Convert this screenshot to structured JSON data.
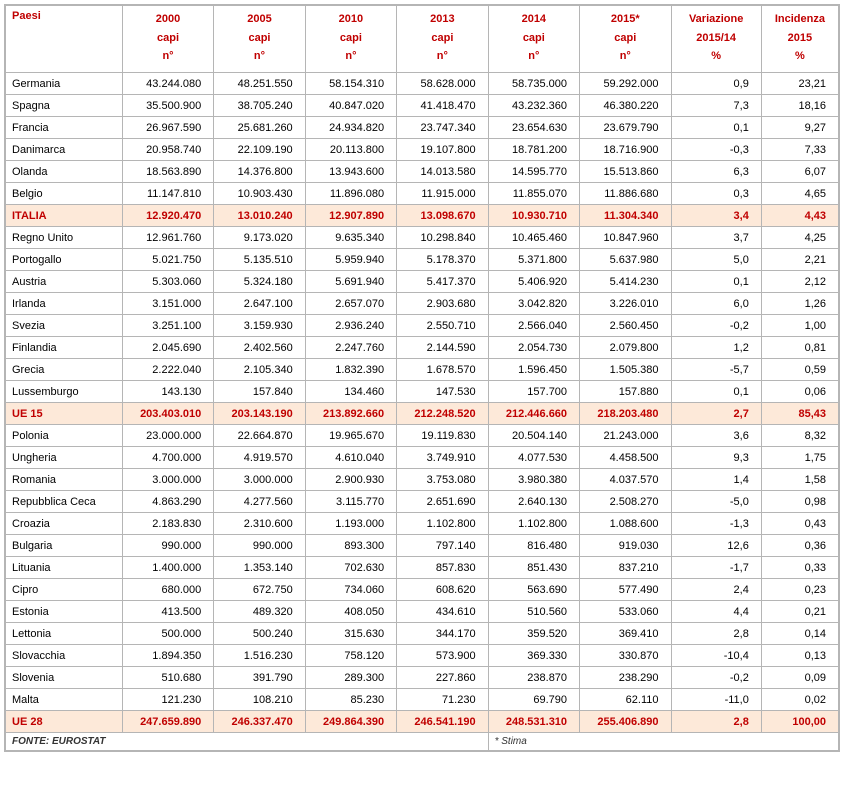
{
  "header": {
    "paesi": "Paesi",
    "cols": [
      {
        "year": "2000",
        "unit": "capi",
        "num": "n°"
      },
      {
        "year": "2005",
        "unit": "capi",
        "num": "n°"
      },
      {
        "year": "2010",
        "unit": "capi",
        "num": "n°"
      },
      {
        "year": "2013",
        "unit": "capi",
        "num": "n°"
      },
      {
        "year": "2014",
        "unit": "capi",
        "num": "n°"
      },
      {
        "year": "2015*",
        "unit": "capi",
        "num": "n°"
      }
    ],
    "variazione": {
      "l1": "Variazione",
      "l2": "2015/14",
      "l3": "%"
    },
    "incidenza": {
      "l1": "Incidenza",
      "l2": "2015",
      "l3": "%"
    }
  },
  "rows": [
    {
      "name": "Germania",
      "v": [
        "43.244.080",
        "48.251.550",
        "58.154.310",
        "58.628.000",
        "58.735.000",
        "59.292.000",
        "0,9",
        "23,21"
      ],
      "hl": false
    },
    {
      "name": "Spagna",
      "v": [
        "35.500.900",
        "38.705.240",
        "40.847.020",
        "41.418.470",
        "43.232.360",
        "46.380.220",
        "7,3",
        "18,16"
      ],
      "hl": false
    },
    {
      "name": "Francia",
      "v": [
        "26.967.590",
        "25.681.260",
        "24.934.820",
        "23.747.340",
        "23.654.630",
        "23.679.790",
        "0,1",
        "9,27"
      ],
      "hl": false
    },
    {
      "name": "Danimarca",
      "v": [
        "20.958.740",
        "22.109.190",
        "20.113.800",
        "19.107.800",
        "18.781.200",
        "18.716.900",
        "-0,3",
        "7,33"
      ],
      "hl": false
    },
    {
      "name": "Olanda",
      "v": [
        "18.563.890",
        "14.376.800",
        "13.943.600",
        "14.013.580",
        "14.595.770",
        "15.513.860",
        "6,3",
        "6,07"
      ],
      "hl": false
    },
    {
      "name": "Belgio",
      "v": [
        "11.147.810",
        "10.903.430",
        "11.896.080",
        "11.915.000",
        "11.855.070",
        "11.886.680",
        "0,3",
        "4,65"
      ],
      "hl": false
    },
    {
      "name": "ITALIA",
      "v": [
        "12.920.470",
        "13.010.240",
        "12.907.890",
        "13.098.670",
        "10.930.710",
        "11.304.340",
        "3,4",
        "4,43"
      ],
      "hl": true
    },
    {
      "name": "Regno Unito",
      "v": [
        "12.961.760",
        "9.173.020",
        "9.635.340",
        "10.298.840",
        "10.465.460",
        "10.847.960",
        "3,7",
        "4,25"
      ],
      "hl": false
    },
    {
      "name": "Portogallo",
      "v": [
        "5.021.750",
        "5.135.510",
        "5.959.940",
        "5.178.370",
        "5.371.800",
        "5.637.980",
        "5,0",
        "2,21"
      ],
      "hl": false
    },
    {
      "name": "Austria",
      "v": [
        "5.303.060",
        "5.324.180",
        "5.691.940",
        "5.417.370",
        "5.406.920",
        "5.414.230",
        "0,1",
        "2,12"
      ],
      "hl": false
    },
    {
      "name": "Irlanda",
      "v": [
        "3.151.000",
        "2.647.100",
        "2.657.070",
        "2.903.680",
        "3.042.820",
        "3.226.010",
        "6,0",
        "1,26"
      ],
      "hl": false
    },
    {
      "name": "Svezia",
      "v": [
        "3.251.100",
        "3.159.930",
        "2.936.240",
        "2.550.710",
        "2.566.040",
        "2.560.450",
        "-0,2",
        "1,00"
      ],
      "hl": false
    },
    {
      "name": "Finlandia",
      "v": [
        "2.045.690",
        "2.402.560",
        "2.247.760",
        "2.144.590",
        "2.054.730",
        "2.079.800",
        "1,2",
        "0,81"
      ],
      "hl": false
    },
    {
      "name": "Grecia",
      "v": [
        "2.222.040",
        "2.105.340",
        "1.832.390",
        "1.678.570",
        "1.596.450",
        "1.505.380",
        "-5,7",
        "0,59"
      ],
      "hl": false
    },
    {
      "name": "Lussemburgo",
      "v": [
        "143.130",
        "157.840",
        "134.460",
        "147.530",
        "157.700",
        "157.880",
        "0,1",
        "0,06"
      ],
      "hl": false
    },
    {
      "name": "UE 15",
      "v": [
        "203.403.010",
        "203.143.190",
        "213.892.660",
        "212.248.520",
        "212.446.660",
        "218.203.480",
        "2,7",
        "85,43"
      ],
      "hl": true
    },
    {
      "name": "Polonia",
      "v": [
        "23.000.000",
        "22.664.870",
        "19.965.670",
        "19.119.830",
        "20.504.140",
        "21.243.000",
        "3,6",
        "8,32"
      ],
      "hl": false
    },
    {
      "name": "Ungheria",
      "v": [
        "4.700.000",
        "4.919.570",
        "4.610.040",
        "3.749.910",
        "4.077.530",
        "4.458.500",
        "9,3",
        "1,75"
      ],
      "hl": false
    },
    {
      "name": "Romania",
      "v": [
        "3.000.000",
        "3.000.000",
        "2.900.930",
        "3.753.080",
        "3.980.380",
        "4.037.570",
        "1,4",
        "1,58"
      ],
      "hl": false
    },
    {
      "name": "Repubblica Ceca",
      "v": [
        "4.863.290",
        "4.277.560",
        "3.115.770",
        "2.651.690",
        "2.640.130",
        "2.508.270",
        "-5,0",
        "0,98"
      ],
      "hl": false
    },
    {
      "name": "Croazia",
      "v": [
        "2.183.830",
        "2.310.600",
        "1.193.000",
        "1.102.800",
        "1.102.800",
        "1.088.600",
        "-1,3",
        "0,43"
      ],
      "hl": false
    },
    {
      "name": "Bulgaria",
      "v": [
        "990.000",
        "990.000",
        "893.300",
        "797.140",
        "816.480",
        "919.030",
        "12,6",
        "0,36"
      ],
      "hl": false
    },
    {
      "name": "Lituania",
      "v": [
        "1.400.000",
        "1.353.140",
        "702.630",
        "857.830",
        "851.430",
        "837.210",
        "-1,7",
        "0,33"
      ],
      "hl": false
    },
    {
      "name": "Cipro",
      "v": [
        "680.000",
        "672.750",
        "734.060",
        "608.620",
        "563.690",
        "577.490",
        "2,4",
        "0,23"
      ],
      "hl": false
    },
    {
      "name": "Estonia",
      "v": [
        "413.500",
        "489.320",
        "408.050",
        "434.610",
        "510.560",
        "533.060",
        "4,4",
        "0,21"
      ],
      "hl": false
    },
    {
      "name": "Lettonia",
      "v": [
        "500.000",
        "500.240",
        "315.630",
        "344.170",
        "359.520",
        "369.410",
        "2,8",
        "0,14"
      ],
      "hl": false
    },
    {
      "name": "Slovacchia",
      "v": [
        "1.894.350",
        "1.516.230",
        "758.120",
        "573.900",
        "369.330",
        "330.870",
        "-10,4",
        "0,13"
      ],
      "hl": false
    },
    {
      "name": "Slovenia",
      "v": [
        "510.680",
        "391.790",
        "289.300",
        "227.860",
        "238.870",
        "238.290",
        "-0,2",
        "0,09"
      ],
      "hl": false
    },
    {
      "name": "Malta",
      "v": [
        "121.230",
        "108.210",
        "85.230",
        "71.230",
        "69.790",
        "62.110",
        "-11,0",
        "0,02"
      ],
      "hl": false
    },
    {
      "name": "UE 28",
      "v": [
        "247.659.890",
        "246.337.470",
        "249.864.390",
        "246.541.190",
        "248.531.310",
        "255.406.890",
        "2,8",
        "100,00"
      ],
      "hl": true
    }
  ],
  "footer": {
    "fonte": "FONTE:  EUROSTAT",
    "stima": "* Stima"
  }
}
